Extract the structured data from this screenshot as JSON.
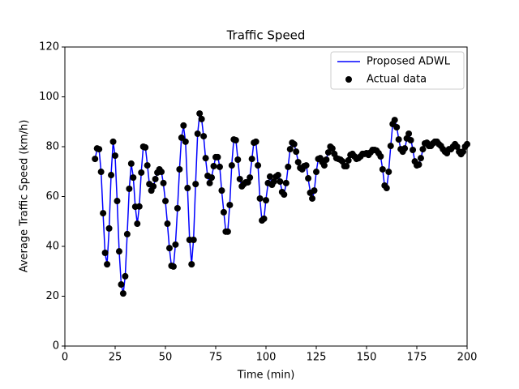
{
  "chart_data": {
    "type": "line",
    "title": "Traffic Speed",
    "x_label": "Time (min)",
    "y_label": "Average Traffic Speed (km/h)",
    "x": [
      15,
      16,
      17,
      18,
      19,
      20,
      21,
      22,
      23,
      24,
      25,
      26,
      27,
      28,
      29,
      30,
      31,
      32,
      33,
      34,
      35,
      36,
      37,
      38,
      39,
      40,
      41,
      42,
      43,
      44,
      45,
      46,
      47,
      48,
      49,
      50,
      51,
      52,
      53,
      54,
      55,
      56,
      57,
      58,
      59,
      60,
      61,
      62,
      63,
      64,
      65,
      66,
      67,
      68,
      69,
      70,
      71,
      72,
      73,
      74,
      75,
      76,
      77,
      78,
      79,
      80,
      81,
      82,
      83,
      84,
      85,
      86,
      87,
      88,
      89,
      90,
      91,
      92,
      93,
      94,
      95,
      96,
      97,
      98,
      99,
      100,
      101,
      102,
      103,
      104,
      105,
      106,
      107,
      108,
      109,
      110,
      111,
      112,
      113,
      114,
      115,
      116,
      117,
      118,
      119,
      120,
      121,
      122,
      123,
      124,
      125,
      126,
      127,
      128,
      129,
      130,
      131,
      132,
      133,
      134,
      135,
      136,
      137,
      138,
      139,
      140,
      141,
      142,
      143,
      144,
      145,
      146,
      147,
      148,
      149,
      150,
      151,
      152,
      153,
      154,
      155,
      156,
      157,
      158,
      159,
      160,
      161,
      162,
      163,
      164,
      165,
      166,
      167,
      168,
      169,
      170,
      171,
      172,
      173,
      174,
      175,
      176,
      177,
      178,
      179,
      180,
      181,
      182,
      183,
      184,
      185,
      186,
      187,
      188,
      189,
      190,
      191,
      192,
      193,
      194,
      195,
      196,
      197,
      198,
      199,
      200
    ],
    "series": [
      {
        "name": "Proposed ADWL",
        "color": "#0000ff",
        "kind": "line",
        "values": [
          75,
          79,
          79,
          70,
          53,
          37,
          33,
          47,
          69,
          82,
          76,
          58,
          38,
          25,
          21,
          28,
          45,
          63,
          73,
          68,
          56,
          49,
          56,
          70,
          80,
          80,
          73,
          65,
          62,
          64,
          67,
          70,
          71,
          70,
          65,
          58,
          49,
          39,
          32,
          32,
          41,
          55,
          71,
          84,
          88,
          82,
          63,
          43,
          33,
          43,
          65,
          85,
          93,
          91,
          84,
          75,
          68,
          65,
          68,
          72,
          76,
          76,
          72,
          62,
          54,
          46,
          46,
          57,
          73,
          83,
          83,
          75,
          67,
          64,
          65,
          66,
          66,
          68,
          75,
          82,
          82,
          73,
          59,
          50,
          51,
          59,
          65,
          68,
          65,
          66,
          68,
          69,
          66,
          62,
          61,
          65,
          72,
          79,
          82,
          81,
          78,
          74,
          72,
          71,
          72,
          73,
          67,
          62,
          59,
          62,
          70,
          75,
          75,
          74,
          73,
          75,
          78,
          80,
          79,
          77,
          75,
          75,
          75,
          74,
          72,
          72,
          75,
          77,
          77,
          76,
          75,
          75,
          76,
          77,
          77,
          77,
          77,
          78,
          79,
          79,
          78,
          77,
          76,
          71,
          64,
          63,
          70,
          80,
          89,
          91,
          88,
          83,
          79,
          78,
          79,
          83,
          85,
          83,
          79,
          74,
          73,
          73,
          75,
          79,
          81,
          82,
          80,
          80,
          81,
          82,
          82,
          81,
          80,
          79,
          78,
          77,
          79,
          79,
          80,
          81,
          80,
          78,
          77,
          78,
          80,
          81
        ]
      },
      {
        "name": "Actual data",
        "color": "#000000",
        "kind": "scatter",
        "values": [
          75.1,
          79.3,
          79,
          69.9,
          53.3,
          37.4,
          32.8,
          47.2,
          68.6,
          82,
          76.4,
          58.2,
          38,
          24.7,
          21.1,
          28,
          44.9,
          63.1,
          73.2,
          67.6,
          55.9,
          49.1,
          56,
          69.6,
          80,
          79.7,
          72.5,
          65,
          62.4,
          64.1,
          67,
          69.6,
          70.9,
          69.9,
          65.4,
          58.2,
          49.1,
          39.3,
          32.2,
          31.9,
          40.7,
          55.3,
          70.9,
          83.6,
          88.5,
          82,
          63.4,
          42.6,
          32.8,
          42.6,
          65,
          85.2,
          93.3,
          91.1,
          84.2,
          75.4,
          68.3,
          65.4,
          67.6,
          72.2,
          75.8,
          75.8,
          71.9,
          62.4,
          53.7,
          45.9,
          45.9,
          56.6,
          72.5,
          82.9,
          82.6,
          74.8,
          67,
          64.1,
          65,
          65.7,
          65.7,
          67.6,
          75.1,
          81.6,
          82,
          72.5,
          59.2,
          50.4,
          51.1,
          58.5,
          65.4,
          68,
          64.7,
          66,
          68,
          68.6,
          66,
          61.8,
          60.8,
          65.4,
          71.9,
          79,
          81.6,
          81,
          78,
          73.8,
          71.5,
          70.9,
          72.2,
          72.5,
          67.3,
          61.5,
          59.2,
          62.4,
          69.9,
          75.1,
          75.4,
          73.8,
          72.5,
          74.8,
          77.7,
          80,
          79.3,
          77.1,
          75.4,
          75.1,
          74.8,
          74.1,
          72.2,
          72.2,
          74.5,
          76.7,
          77.1,
          76.1,
          75.1,
          75.4,
          76.1,
          77.1,
          77.1,
          77.4,
          76.7,
          77.7,
          78.7,
          78.7,
          78.4,
          77.4,
          76.1,
          70.9,
          64.4,
          63.4,
          69.9,
          80.3,
          89.1,
          90.7,
          87.8,
          82.9,
          79,
          78,
          79.3,
          83.3,
          85.2,
          82.6,
          78.7,
          74.1,
          72.5,
          72.8,
          75.4,
          79,
          81.3,
          81.6,
          80.3,
          80.3,
          81.3,
          82,
          82,
          81,
          80.3,
          79,
          78,
          77.4,
          79,
          79,
          80,
          81,
          80,
          78,
          77,
          78,
          80,
          81
        ]
      }
    ],
    "xlim": [
      0,
      200
    ],
    "xticks": [
      0,
      25,
      50,
      75,
      100,
      125,
      150,
      175,
      200
    ],
    "ylim": [
      0,
      120
    ],
    "yticks": [
      0,
      20,
      40,
      60,
      80,
      100,
      120
    ],
    "legend": "upper right"
  }
}
